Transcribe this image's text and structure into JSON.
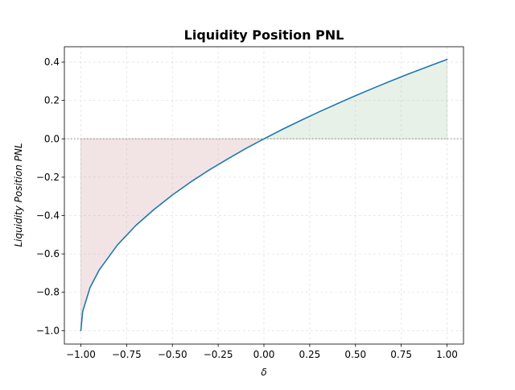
{
  "chart_data": {
    "type": "line",
    "title": "Liquidity Position PNL",
    "xlabel": "δ",
    "ylabel": "Liquidity Position PNL",
    "xlim": [
      -1.09,
      1.09
    ],
    "ylim": [
      -1.07,
      0.48
    ],
    "x_ticks": [
      -1.0,
      -0.75,
      -0.5,
      -0.25,
      0.0,
      0.25,
      0.5,
      0.75,
      1.0
    ],
    "x_tick_labels": [
      "−1.00",
      "−0.75",
      "−0.50",
      "−0.25",
      "0.00",
      "0.25",
      "0.50",
      "0.75",
      "1.00"
    ],
    "y_ticks": [
      -1.0,
      -0.8,
      -0.6,
      -0.4,
      -0.2,
      0.0,
      0.2,
      0.4
    ],
    "y_tick_labels": [
      "−1.0",
      "−0.8",
      "−0.6",
      "−0.4",
      "−0.2",
      "0.0",
      "0.2",
      "0.4"
    ],
    "grid": true,
    "reference_line_y": 0.0,
    "series": [
      {
        "x": [
          -1.0,
          -0.99,
          -0.95,
          -0.9,
          -0.8,
          -0.7,
          -0.6,
          -0.5,
          -0.4,
          -0.3,
          -0.2,
          -0.1,
          0.0,
          0.1,
          0.2,
          0.3,
          0.4,
          0.5,
          0.6,
          0.7,
          0.8,
          0.9,
          1.0
        ],
        "y": [
          -1.0,
          -0.9,
          -0.776,
          -0.684,
          -0.553,
          -0.452,
          -0.368,
          -0.293,
          -0.225,
          -0.163,
          -0.106,
          -0.051,
          0.0,
          0.049,
          0.095,
          0.14,
          0.183,
          0.225,
          0.265,
          0.304,
          0.342,
          0.378,
          0.414
        ],
        "color": "#1f77b4"
      }
    ],
    "fill_colors": {
      "negative": "#f2e4e4",
      "positive": "#e8f1e7"
    }
  }
}
